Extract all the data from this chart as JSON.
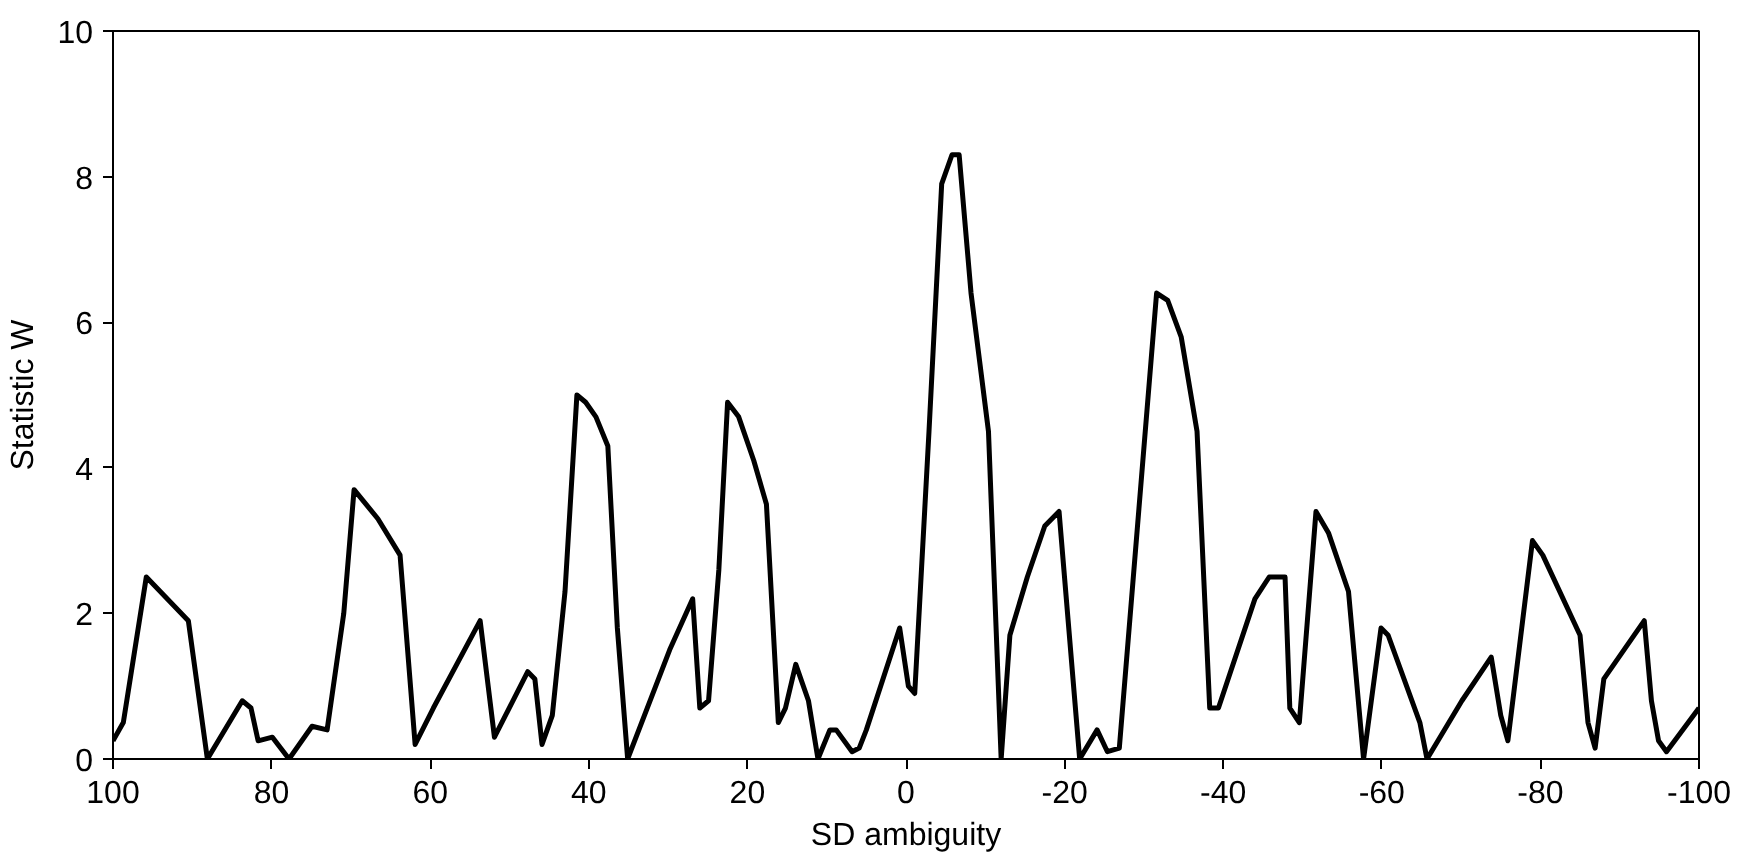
{
  "chart_data": {
    "type": "line",
    "xlabel": "SD ambiguity",
    "ylabel": "Statistic W",
    "xlim": [
      100,
      -100
    ],
    "ylim": [
      0,
      10
    ],
    "xticks": [
      100,
      80,
      60,
      40,
      20,
      0,
      -20,
      -40,
      -60,
      -80,
      -100
    ],
    "yticks": [
      0,
      2,
      4,
      6,
      8,
      10
    ],
    "grid": false,
    "marker": "none",
    "line_style": "solid",
    "x": [
      100,
      98.7,
      95.8,
      90.5,
      88.1,
      83.7,
      82.6,
      81.7,
      79.9,
      77.8,
      74.9,
      73.0,
      70.9,
      69.6,
      66.6,
      63.8,
      61.9,
      59.6,
      53.7,
      51.9,
      47.7,
      46.8,
      45.9,
      44.6,
      43.0,
      41.5,
      40.4,
      39.1,
      37.6,
      36.4,
      35.1,
      29.8,
      26.9,
      26.0,
      24.9,
      23.6,
      22.5,
      21.1,
      19.2,
      17.6,
      16.1,
      15.2,
      13.9,
      12.3,
      11.1,
      9.6,
      8.8,
      6.8,
      5.9,
      5.0,
      0.8,
      -0.3,
      -1.1,
      -2.9,
      -4.5,
      -5.8,
      -6.7,
      -8.2,
      -10.4,
      -12.0,
      -13.1,
      -15.3,
      -17.5,
      -19.3,
      -21.9,
      -24.1,
      -25.4,
      -26.9,
      -31.6,
      -33.0,
      -34.7,
      -36.7,
      -38.3,
      -39.4,
      -44.0,
      -45.8,
      -47.8,
      -48.4,
      -49.6,
      -51.7,
      -53.3,
      -55.8,
      -57.7,
      -59.9,
      -60.8,
      -64.8,
      -65.7,
      -70.1,
      -73.8,
      -75.0,
      -75.9,
      -79.0,
      -80.3,
      -85.0,
      -86.0,
      -86.9,
      -88.0,
      -93.1,
      -94.0,
      -94.9,
      -95.9,
      -100
    ],
    "series": [
      {
        "color": "#000000",
        "values": [
          0.25,
          0.5,
          2.5,
          1.9,
          0,
          0.8,
          0.7,
          0.25,
          0.3,
          0,
          0.45,
          0.4,
          2.0,
          3.7,
          3.3,
          2.8,
          0.2,
          0.7,
          1.9,
          0.3,
          1.2,
          1.1,
          0.2,
          0.6,
          2.3,
          5.0,
          4.9,
          4.7,
          4.3,
          1.8,
          0,
          1.5,
          2.2,
          0.7,
          0.8,
          2.6,
          4.9,
          4.7,
          4.1,
          3.5,
          0.5,
          0.7,
          1.3,
          0.8,
          0,
          0.4,
          0.4,
          0.1,
          0.15,
          0.4,
          1.8,
          1.0,
          0.9,
          4.5,
          7.9,
          8.3,
          8.3,
          6.4,
          4.5,
          0,
          1.7,
          2.5,
          3.2,
          3.4,
          0,
          0.4,
          0.1,
          0.15,
          6.4,
          6.3,
          5.8,
          4.5,
          0.7,
          0.7,
          2.2,
          2.5,
          2.5,
          0.7,
          0.5,
          3.4,
          3.1,
          2.3,
          0,
          1.8,
          1.7,
          0.5,
          0,
          0.8,
          1.4,
          0.6,
          0.25,
          3.0,
          2.8,
          1.7,
          0.5,
          0.15,
          1.1,
          1.9,
          0.8,
          0.25,
          0.1,
          0.7
        ]
      }
    ]
  }
}
